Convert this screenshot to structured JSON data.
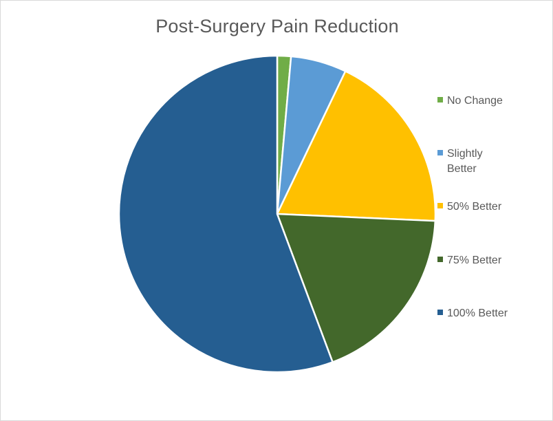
{
  "chart_data": {
    "type": "pie",
    "title": "Post-Surgery Pain Reduction",
    "categories": [
      "No Change",
      "Slightly Better",
      "50% Better",
      "75% Better",
      "100% Better"
    ],
    "values": [
      1.4,
      5.7,
      18.6,
      18.6,
      55.7
    ],
    "colors": [
      "#70ad47",
      "#5b9bd5",
      "#ffc000",
      "#43682b",
      "#255e91"
    ],
    "legend_position": "right"
  }
}
